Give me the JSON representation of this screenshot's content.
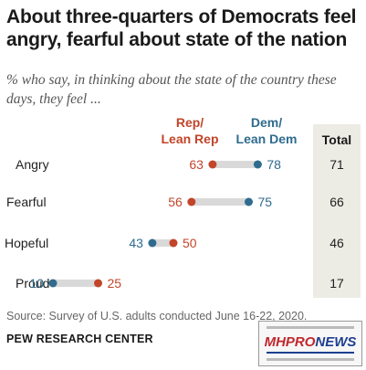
{
  "title": "About three-quarters of Democrats feel angry, fearful about state of the nation",
  "subtitle": "% who say, in thinking about the state of the country these days, they feel ...",
  "source": "Source: Survey of U.S. adults conducted June 16-22, 2020.",
  "brand": "PEW RESEARCH CENTER",
  "watermark": {
    "mh": "MH",
    "pro": "PRO",
    "news": "NEWS"
  },
  "colors": {
    "rep": "#c2452a",
    "dem": "#2f6b8e",
    "bar": "#d9d9d9",
    "total_bg": "#ecebe4"
  },
  "chart_data": {
    "type": "dot",
    "headers": {
      "rep": "Rep/ Lean Rep",
      "rep_line1": "Rep/",
      "rep_line2": "Lean Rep",
      "dem_line1": "Dem/",
      "dem_line2": "Lean Dem",
      "total": "Total"
    },
    "categories": [
      "Angry",
      "Fearful",
      "Hopeful",
      "Proud"
    ],
    "series": [
      {
        "name": "Rep/Lean Rep",
        "values": [
          63,
          56,
          50,
          25
        ]
      },
      {
        "name": "Dem/Lean Dem",
        "values": [
          78,
          75,
          43,
          10
        ]
      }
    ],
    "totals": [
      71,
      66,
      46,
      17
    ],
    "xlim": [
      0,
      100
    ]
  }
}
